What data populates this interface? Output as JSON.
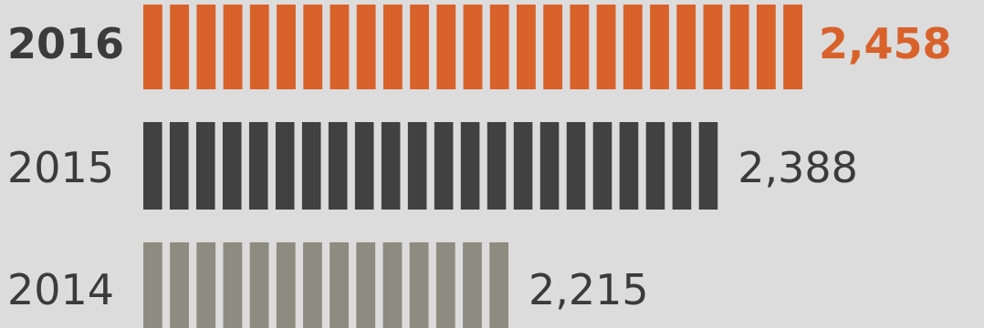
{
  "chart_data": {
    "type": "bar",
    "orientation": "horizontal",
    "categories": [
      "2016",
      "2015",
      "2014"
    ],
    "values": [
      2458,
      2388,
      2215
    ],
    "value_labels": [
      "2,458",
      "2,388",
      "2,215"
    ],
    "colors": [
      "#d9622b",
      "#414141",
      "#8e8b80"
    ],
    "highlight_color": "#d9622b",
    "label_color": "#3b3b3b",
    "title": "",
    "xlabel": "",
    "ylabel": "",
    "grid": false,
    "legend": "none"
  }
}
